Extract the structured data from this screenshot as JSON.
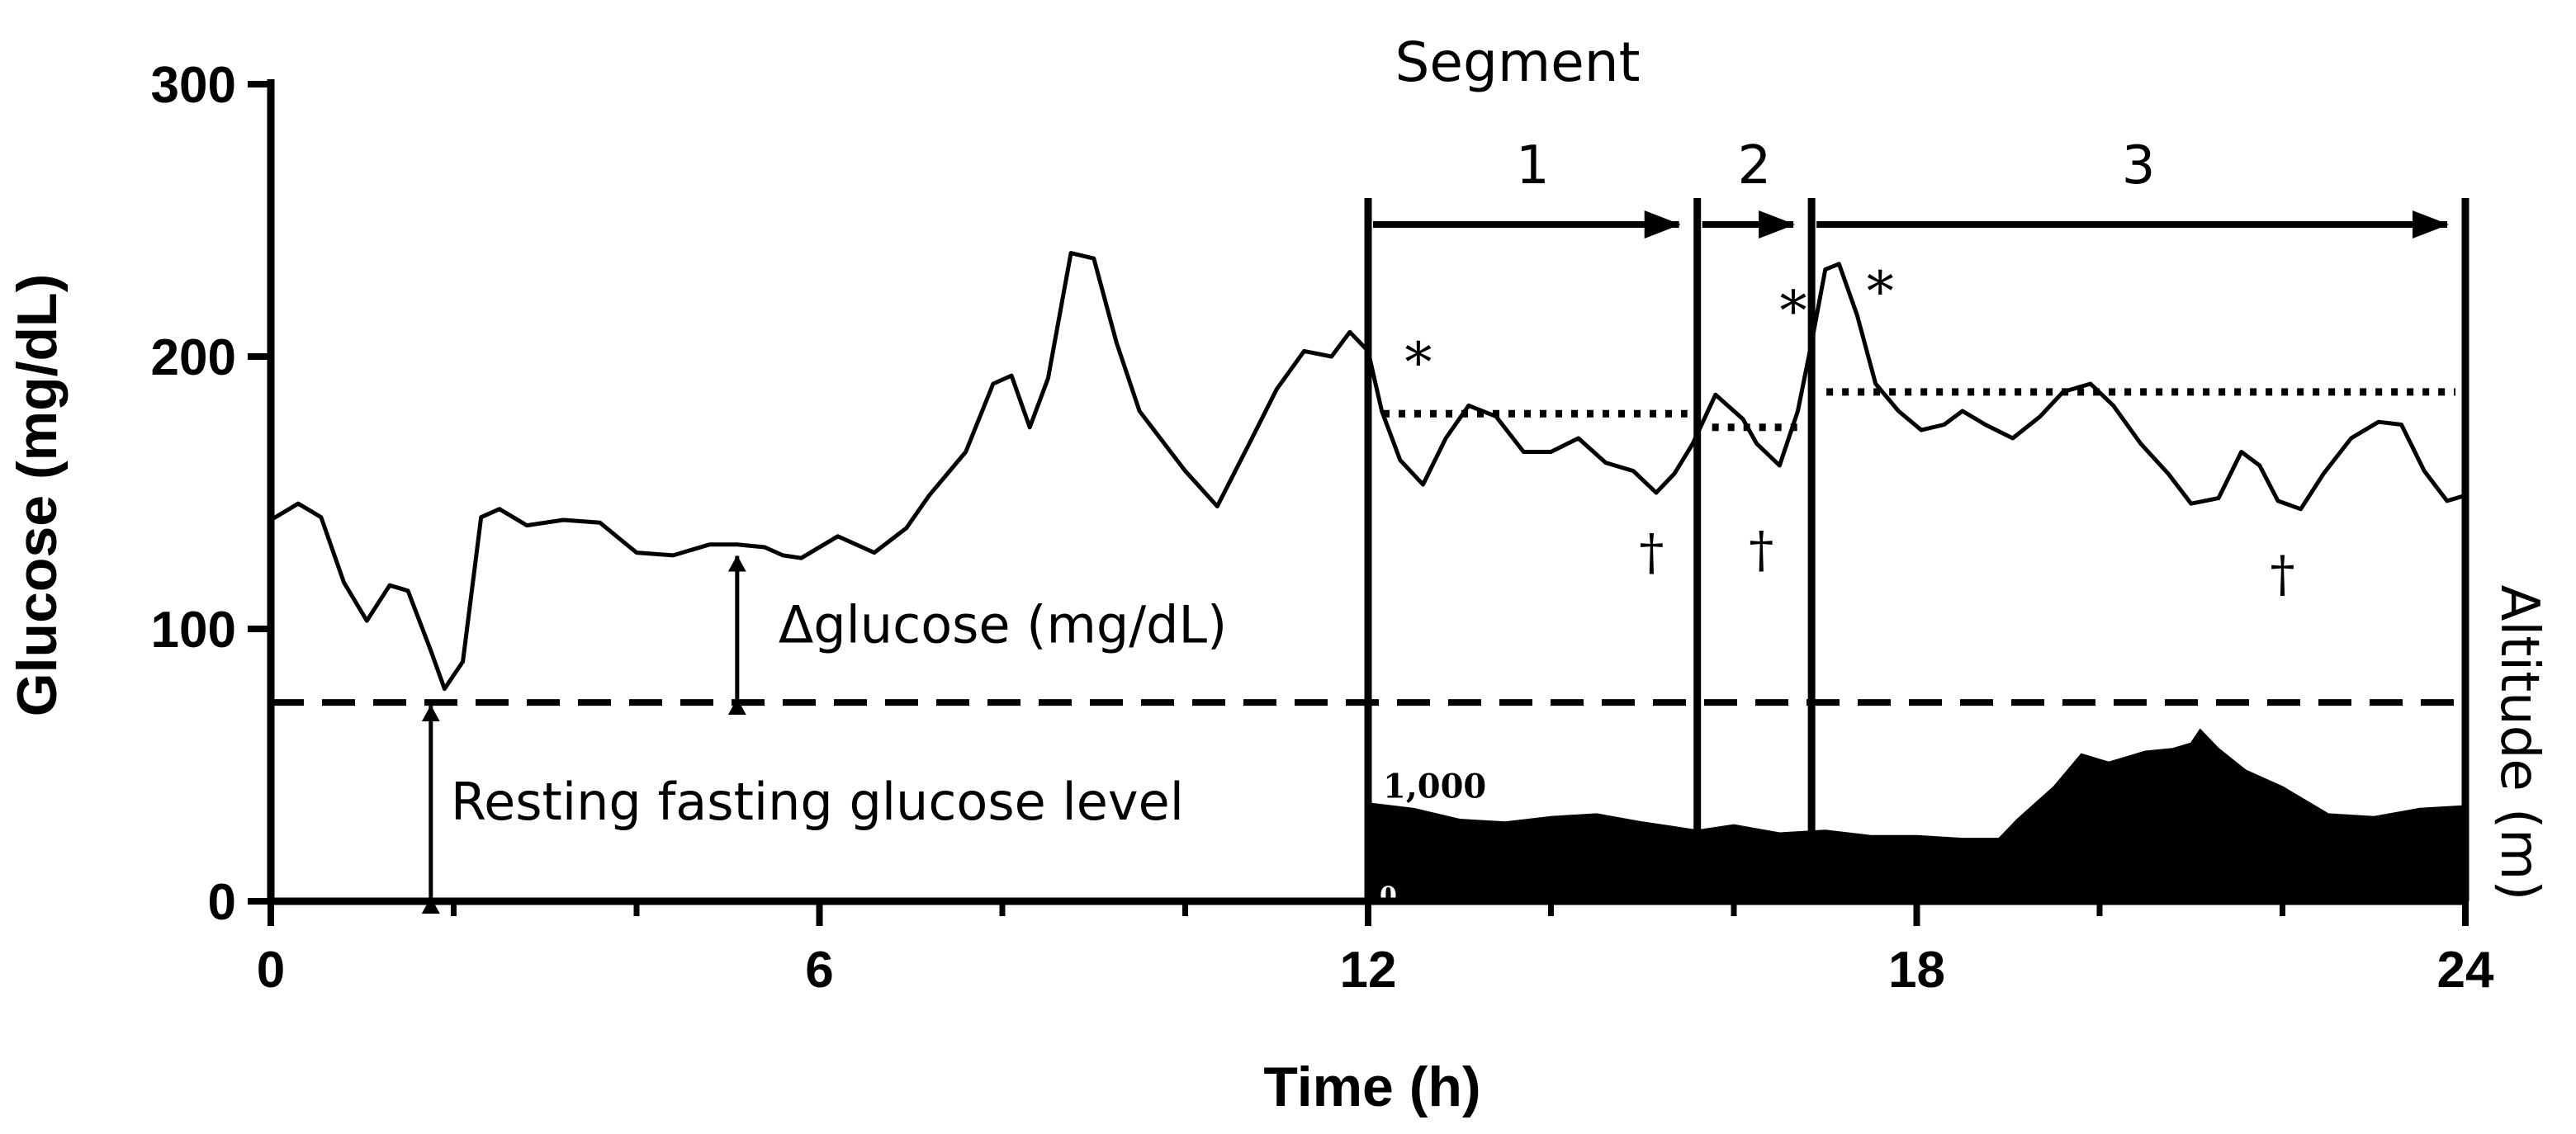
{
  "chart_data": {
    "type": "line",
    "title": "",
    "xlabel": "Time (h)",
    "ylabel": "Glucose (mg/dL)",
    "secondary_ylabel": "Altitude (m)",
    "xlim": [
      0,
      24
    ],
    "ylim": [
      0,
      300
    ],
    "x_ticks": [
      0,
      6,
      12,
      18,
      24
    ],
    "y_ticks": [
      0,
      100,
      200,
      300
    ],
    "minor_x_ticks": [
      2,
      4,
      8,
      10,
      14,
      16,
      20,
      22
    ],
    "series": [
      {
        "name": "Glucose",
        "x": [
          0,
          0.3,
          0.55,
          0.8,
          1.05,
          1.3,
          1.5,
          1.75,
          1.9,
          2.1,
          2.3,
          2.5,
          2.8,
          3.2,
          3.6,
          4.0,
          4.4,
          4.8,
          5.1,
          5.4,
          5.6,
          5.8,
          6.2,
          6.6,
          6.95,
          7.2,
          7.6,
          7.9,
          8.1,
          8.3,
          8.5,
          8.75,
          9.0,
          9.25,
          9.5,
          10.0,
          10.35,
          10.7,
          11.0,
          11.3,
          11.6,
          11.8,
          12.0,
          12.15,
          12.35,
          12.6,
          12.85,
          13.1,
          13.4,
          13.7,
          14.0,
          14.3,
          14.6,
          14.9,
          15.15,
          15.35,
          15.55,
          15.8,
          16.1,
          16.25,
          16.5,
          16.7,
          16.85,
          17.0,
          17.15,
          17.35,
          17.55,
          17.8,
          18.05,
          18.3,
          18.5,
          18.75,
          19.05,
          19.35,
          19.6,
          19.9,
          20.15,
          20.45,
          20.75,
          21.0,
          21.3,
          21.55,
          21.75,
          21.95,
          22.2,
          22.45,
          22.75,
          23.05,
          23.3,
          23.55,
          23.8,
          24.0
        ],
        "values": [
          140,
          146,
          141,
          117,
          103,
          116,
          114,
          92,
          78,
          88,
          141,
          144,
          138,
          140,
          139,
          128,
          127,
          131,
          131,
          130,
          127,
          126,
          134,
          128,
          137,
          149,
          165,
          190,
          193,
          174,
          192,
          238,
          236,
          205,
          180,
          158,
          145,
          168,
          188,
          202,
          200,
          209,
          202,
          180,
          162,
          153,
          170,
          182,
          178,
          165,
          165,
          170,
          161,
          158,
          150,
          157,
          168,
          186,
          177,
          168,
          160,
          180,
          205,
          232,
          234,
          215,
          190,
          180,
          173,
          175,
          180,
          175,
          170,
          178,
          187,
          190,
          182,
          168,
          157,
          146,
          148,
          165,
          160,
          147,
          144,
          157,
          170,
          176,
          175,
          158,
          147,
          149
        ]
      },
      {
        "name": "Segment mean (dotted)",
        "segments": [
          {
            "x": [
              12,
              15.6
            ],
            "y": 179
          },
          {
            "x": [
              15.6,
              16.85
            ],
            "y": 174
          },
          {
            "x": [
              16.85,
              24
            ],
            "y": 187
          }
        ]
      },
      {
        "name": "Resting fasting glucose level (dashed)",
        "x": [
          0,
          24
        ],
        "values": [
          73,
          73
        ]
      },
      {
        "name": "Altitude (filled profile, glucose-axis units)",
        "x": [
          12,
          12.5,
          13,
          13.5,
          14,
          14.5,
          15,
          15.6,
          16,
          16.5,
          17,
          17.5,
          18,
          18.5,
          18.9,
          19.1,
          19.5,
          19.8,
          20.1,
          20.5,
          20.8,
          21.0,
          21.1,
          21.3,
          21.6,
          22.0,
          22.5,
          23.0,
          23.5,
          24.0
        ],
        "values": [
          36,
          34,
          30,
          29,
          31,
          32,
          29,
          26,
          28,
          25,
          26,
          24,
          24,
          23,
          23,
          30,
          42,
          54,
          51,
          55,
          56,
          58,
          63,
          56,
          48,
          42,
          32,
          31,
          34,
          35
        ]
      }
    ],
    "segments": {
      "title": "Segment",
      "boundaries": [
        12,
        15.6,
        16.85,
        24
      ],
      "labels": [
        "1",
        "2",
        "3"
      ]
    },
    "annotations": {
      "delta_label": "Δglucose (mg/dL)",
      "resting_label": "Resting fasting glucose level",
      "altitude_tick": "1,000",
      "altitude_zero": "0",
      "asterisks": [
        {
          "x": 12.55,
          "y": 200,
          "text": "*"
        },
        {
          "x": 16.65,
          "y": 219,
          "text": "*"
        },
        {
          "x": 17.6,
          "y": 226,
          "text": "*"
        }
      ],
      "daggers": [
        {
          "x": 15.1,
          "y": 128,
          "text": "†"
        },
        {
          "x": 16.3,
          "y": 129,
          "text": "†"
        },
        {
          "x": 22.0,
          "y": 120,
          "text": "†"
        }
      ],
      "delta_arrow_x": 5.1,
      "resting_arrow_x": 1.75
    },
    "grid": false,
    "legend": "none"
  }
}
